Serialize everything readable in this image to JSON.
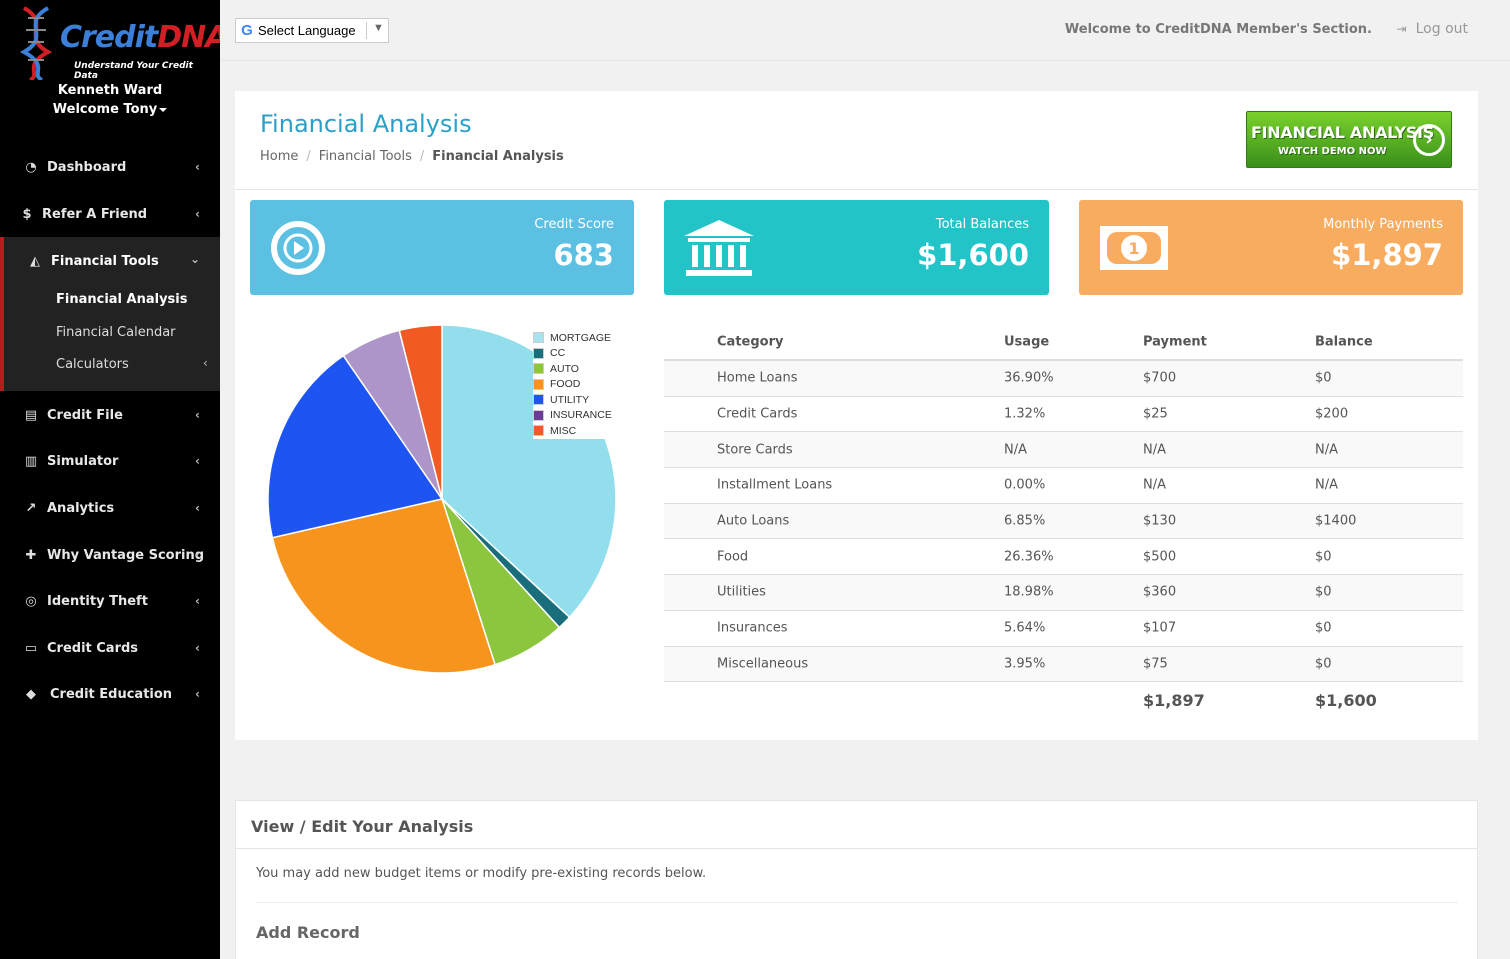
{
  "brand": {
    "name_part1": "Credit",
    "name_part2": "DNA",
    "tagline": "Understand Your Credit Data"
  },
  "user": {
    "name": "Kenneth Ward",
    "welcome": "Welcome Tony"
  },
  "nav": {
    "dashboard": "Dashboard",
    "refer": "Refer A Friend",
    "financial_tools": "Financial Tools",
    "sub_financial_analysis": "Financial Analysis",
    "sub_financial_calendar": "Financial Calendar",
    "sub_calculators": "Calculators",
    "credit_file": "Credit File",
    "simulator": "Simulator",
    "analytics": "Analytics",
    "why_vantage": "Why Vantage Scoring",
    "identity_theft": "Identity Theft",
    "credit_cards": "Credit Cards",
    "credit_education": "Credit Education"
  },
  "topbar": {
    "language_label": "Select Language",
    "welcome": "Welcome to CreditDNA Member's Section.",
    "logout": "Log out"
  },
  "page": {
    "title": "Financial Analysis",
    "breadcrumb": [
      "Home",
      "Financial Tools",
      "Financial Analysis"
    ],
    "demo_line1": "FINANCIAL ANALYSIS",
    "demo_line2": "WATCH DEMO NOW"
  },
  "stats": {
    "credit_score_label": "Credit Score",
    "credit_score_value": "683",
    "total_balances_label": "Total Balances",
    "total_balances_value": "$1,600",
    "monthly_payments_label": "Monthly Payments",
    "monthly_payments_value": "$1,897"
  },
  "colors": {
    "credit_score_bg": "#5bc0e2",
    "total_balances_bg": "#23c4c7",
    "monthly_payments_bg": "#f7ac5f",
    "accent_title": "#2aa0c8",
    "sidebar_active_border": "#b71c1c"
  },
  "chart_data": {
    "type": "pie",
    "legend": [
      "MORTGAGE",
      "CC",
      "AUTO",
      "FOOD",
      "UTILITY",
      "INSURANCE",
      "MISC"
    ],
    "slices": [
      {
        "name": "MORTGAGE",
        "value": 36.9,
        "color": "#93deed"
      },
      {
        "name": "CC",
        "value": 1.32,
        "color": "#1a6e7c"
      },
      {
        "name": "AUTO",
        "value": 6.85,
        "color": "#8cc63f"
      },
      {
        "name": "FOOD",
        "value": 26.36,
        "color": "#f7941d"
      },
      {
        "name": "UTILITY",
        "value": 18.98,
        "color": "#1e55f2"
      },
      {
        "name": "INSURANCE",
        "value": 5.64,
        "color": "#ad95c9"
      },
      {
        "name": "MISC",
        "value": 3.95,
        "color": "#f15a22"
      }
    ],
    "legend_colors": [
      "#a8e3f0",
      "#1a6e7c",
      "#8cc63f",
      "#f7941d",
      "#1e55f2",
      "#6c3c97",
      "#f15a22"
    ]
  },
  "table": {
    "headers": [
      "Category",
      "Usage",
      "Payment",
      "Balance"
    ],
    "rows": [
      [
        "Home Loans",
        "36.90%",
        "$700",
        "$0"
      ],
      [
        "Credit Cards",
        "1.32%",
        "$25",
        "$200"
      ],
      [
        "Store Cards",
        "N/A",
        "N/A",
        "N/A"
      ],
      [
        "Installment Loans",
        "0.00%",
        "N/A",
        "N/A"
      ],
      [
        "Auto Loans",
        "6.85%",
        "$130",
        "$1400"
      ],
      [
        "Food",
        "26.36%",
        "$500",
        "$0"
      ],
      [
        "Utilities",
        "18.98%",
        "$360",
        "$0"
      ],
      [
        "Insurances",
        "5.64%",
        "$107",
        "$0"
      ],
      [
        "Miscellaneous",
        "3.95%",
        "$75",
        "$0"
      ]
    ],
    "total_payment": "$1,897",
    "total_balance": "$1,600"
  },
  "edit_box": {
    "title": "View / Edit Your Analysis",
    "description": "You may add new budget items or modify pre-existing records below.",
    "add_record": "Add Record"
  }
}
